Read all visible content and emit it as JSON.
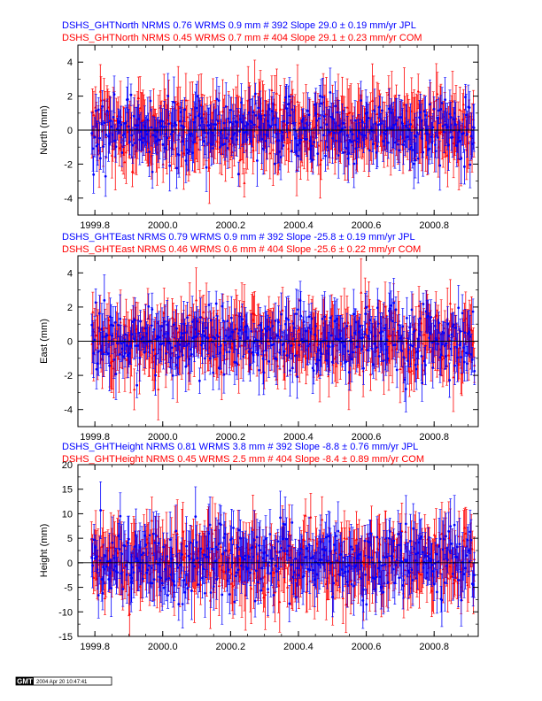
{
  "colors": {
    "jpl": "#0000ff",
    "com": "#ff0000",
    "zero_line": "#000000",
    "frame": "#000000"
  },
  "chart_data": [
    {
      "type": "scatter",
      "component": "North",
      "ylabel": "North (mm)",
      "xlim": [
        1999.75,
        2000.93
      ],
      "ylim": [
        -5,
        5
      ],
      "xticks": [
        "1999.8",
        "2000.0",
        "2000.2",
        "2000.4",
        "2000.6",
        "2000.8"
      ],
      "yticks": [
        "-4",
        "-2",
        "0",
        "2",
        "4"
      ],
      "series": [
        {
          "name": "JPL",
          "station": "DSHS_GHT",
          "component": "North",
          "nrms": "0.76",
          "wrms": "0.9 mm",
          "count": "# 392",
          "slope": "29.0",
          "pm": "±",
          "sigma": "0.19",
          "units": "mm/yr",
          "source": "JPL",
          "n": 392,
          "start": 1999.79,
          "end": 2000.92,
          "mean": 0,
          "spread": 1.0,
          "sigma_err": 1.05
        },
        {
          "name": "COM",
          "station": "DSHS_GHT",
          "component": "North",
          "nrms": "0.45",
          "wrms": "0.7 mm",
          "count": "# 404",
          "slope": "29.1",
          "pm": "±",
          "sigma": "0.23",
          "units": "mm/yr",
          "source": "COM",
          "n": 404,
          "start": 1999.79,
          "end": 2000.92,
          "mean": 0,
          "spread": 0.95,
          "sigma_err": 1.5
        }
      ]
    },
    {
      "type": "scatter",
      "component": "East",
      "ylabel": "East (mm)",
      "xlim": [
        1999.75,
        2000.93
      ],
      "ylim": [
        -5,
        5
      ],
      "xticks": [
        "1999.8",
        "2000.0",
        "2000.2",
        "2000.4",
        "2000.6",
        "2000.8"
      ],
      "yticks": [
        "-4",
        "-2",
        "0",
        "2",
        "4"
      ],
      "series": [
        {
          "name": "JPL",
          "station": "DSHS_GHT",
          "component": "East",
          "nrms": "0.79",
          "wrms": "0.9 mm",
          "count": "# 392",
          "slope": "-25.8",
          "pm": "±",
          "sigma": "0.19",
          "units": "mm/yr",
          "source": "JPL",
          "n": 392,
          "start": 1999.79,
          "end": 2000.92,
          "mean": 0,
          "spread": 1.0,
          "sigma_err": 1.05
        },
        {
          "name": "COM",
          "station": "DSHS_GHT",
          "component": "East",
          "nrms": "0.46",
          "wrms": "0.6 mm",
          "count": "# 404",
          "slope": "-25.6",
          "pm": "±",
          "sigma": "0.22",
          "units": "mm/yr",
          "source": "COM",
          "n": 404,
          "start": 1999.79,
          "end": 2000.92,
          "mean": 0,
          "spread": 0.9,
          "sigma_err": 1.4
        }
      ]
    },
    {
      "type": "scatter",
      "component": "Height",
      "ylabel": "Height (mm)",
      "xlim": [
        1999.75,
        2000.93
      ],
      "ylim": [
        -15,
        20
      ],
      "xticks": [
        "1999.8",
        "2000.0",
        "2000.2",
        "2000.4",
        "2000.6",
        "2000.8"
      ],
      "yticks": [
        "-15",
        "-10",
        "-5",
        "0",
        "5",
        "10",
        "15",
        "20"
      ],
      "series": [
        {
          "name": "JPL",
          "station": "DSHS_GHT",
          "component": "Height",
          "nrms": "0.81",
          "wrms": "3.8 mm",
          "count": "# 392",
          "slope": "-8.8",
          "pm": "±",
          "sigma": "0.76",
          "units": "mm/yr",
          "source": "JPL",
          "n": 392,
          "start": 1999.79,
          "end": 2000.92,
          "mean": 0,
          "spread": 3.6,
          "sigma_err": 4.2
        },
        {
          "name": "COM",
          "station": "DSHS_GHT",
          "component": "Height",
          "nrms": "0.45",
          "wrms": "2.5 mm",
          "count": "# 404",
          "slope": "-8.4",
          "pm": "±",
          "sigma": "0.89",
          "units": "mm/yr",
          "source": "COM",
          "n": 404,
          "start": 1999.79,
          "end": 2000.92,
          "mean": 0,
          "spread": 3.3,
          "sigma_err": 5.2
        }
      ]
    }
  ],
  "footer": {
    "logo": "GMT",
    "timestamp": "2004 Apr 20 10:47:41"
  }
}
